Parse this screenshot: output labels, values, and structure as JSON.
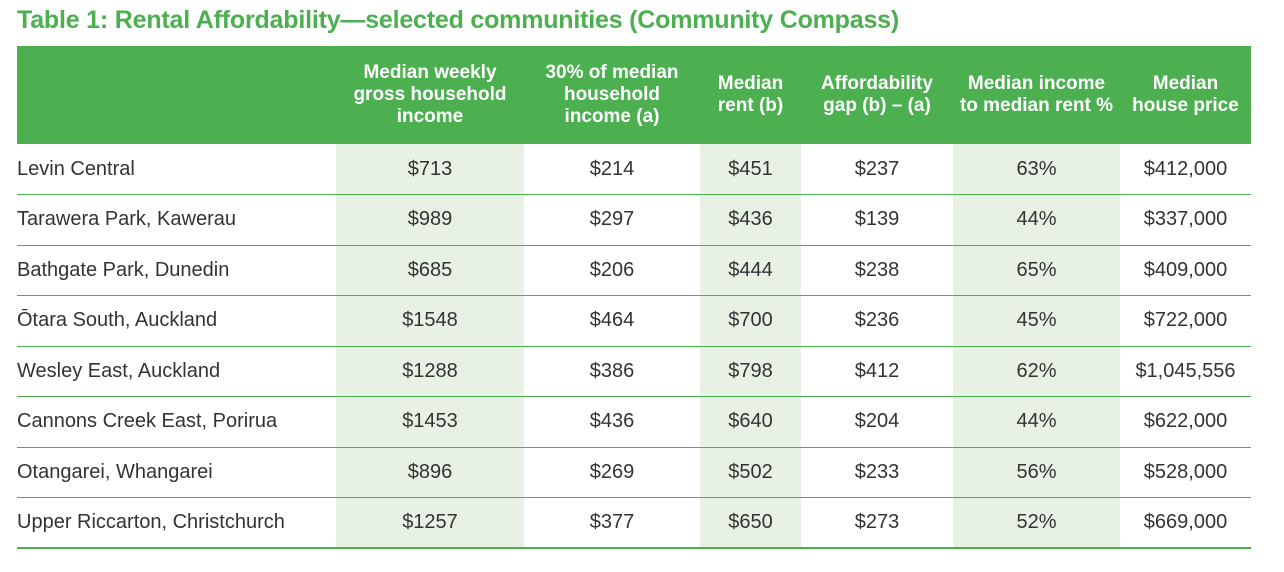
{
  "title": "Table 1: Rental Affordability—selected communities (Community Compass)",
  "columns": [
    "",
    "Median weekly gross household income",
    "30% of median household income (a)",
    "Median rent (b)",
    "Affordability gap (b) – (a)",
    "Median income to median rent %",
    "Median house price"
  ],
  "rows": [
    [
      "Levin Central",
      "$713",
      "$214",
      "$451",
      "$237",
      "63%",
      "$412,000"
    ],
    [
      "Tarawera Park, Kawerau",
      "$989",
      "$297",
      "$436",
      "$139",
      "44%",
      "$337,000"
    ],
    [
      "Bathgate Park, Dunedin",
      "$685",
      "$206",
      "$444",
      "$238",
      "65%",
      "$409,000"
    ],
    [
      "Ōtara South, Auckland",
      "$1548",
      "$464",
      "$700",
      "$236",
      "45%",
      "$722,000"
    ],
    [
      "Wesley East, Auckland",
      "$1288",
      "$386",
      "$798",
      "$412",
      "62%",
      "$1,045,556"
    ],
    [
      "Cannons Creek East, Porirua",
      "$1453",
      "$436",
      "$640",
      "$204",
      "44%",
      "$622,000"
    ],
    [
      "Otangarei, Whangarei",
      "$896",
      "$269",
      "$502",
      "$233",
      "56%",
      "$528,000"
    ],
    [
      "Upper Riccarton, Christchurch",
      "$1257",
      "$377",
      "$650",
      "$273",
      "52%",
      "$669,000"
    ]
  ]
}
